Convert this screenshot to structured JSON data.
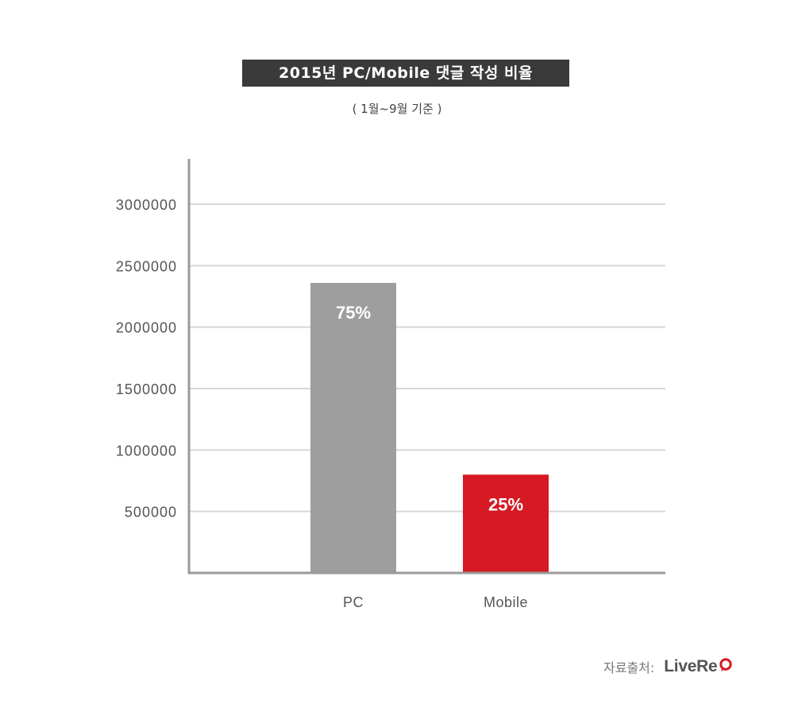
{
  "title": "2015년 PC/Mobile 댓글 작성 비율",
  "subtitle": "( 1월~9월 기준 )",
  "source": {
    "label": "자료출처:",
    "brand": "LiveRe"
  },
  "colors": {
    "title_bg": "#3a3a3a",
    "pc_bar": "#9e9e9e",
    "mobile_bar": "#d51a23",
    "grid": "#d6d6d6",
    "axis": "#9a9a9a",
    "brand_accent": "#d51a23"
  },
  "chart_data": {
    "type": "bar",
    "title": "2015년 PC/Mobile 댓글 작성 비율",
    "subtitle": "( 1월~9월 기준 )",
    "categories": [
      "PC",
      "Mobile"
    ],
    "values": [
      2360000,
      800000
    ],
    "data_labels": [
      "75%",
      "25%"
    ],
    "bar_colors": [
      "#9e9e9e",
      "#d51a23"
    ],
    "ylim": [
      0,
      3400000
    ],
    "yticks": [
      500000,
      1000000,
      1500000,
      2000000,
      2500000,
      3000000
    ],
    "ytick_labels": [
      "500000",
      "1000000",
      "1500000",
      "2000000",
      "2500000",
      "3000000"
    ],
    "xlabel": "",
    "ylabel": "",
    "grid": true,
    "legend": false
  }
}
